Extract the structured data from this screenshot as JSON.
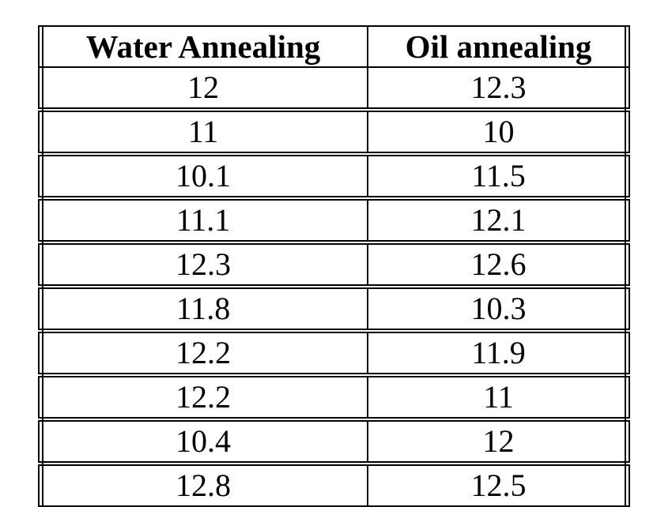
{
  "chart_data": {
    "type": "table",
    "columns": [
      "Water Annealing",
      "Oil annealing"
    ],
    "rows": [
      [
        "12",
        "12.3"
      ],
      [
        "11",
        "10"
      ],
      [
        "10.1",
        "11.5"
      ],
      [
        "11.1",
        "12.1"
      ],
      [
        "12.3",
        "12.6"
      ],
      [
        "11.8",
        "10.3"
      ],
      [
        "12.2",
        "11.9"
      ],
      [
        "12.2",
        "11"
      ],
      [
        "10.4",
        "12"
      ],
      [
        "12.8",
        "12.5"
      ]
    ],
    "layout_hints": {
      "outer_vertical_borders": "double",
      "row_separators": "double",
      "header_separator": "single",
      "grid": "on"
    }
  },
  "colors": {
    "background": "#ffffff",
    "border": "#000000",
    "text": "#000000"
  }
}
